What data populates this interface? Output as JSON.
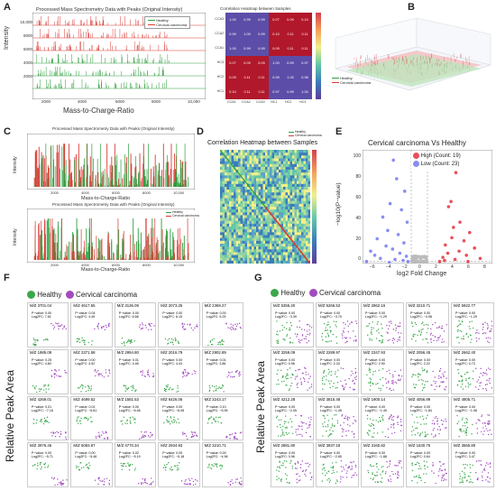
{
  "panels": {
    "A": {
      "label": "A",
      "title": "Processed Mass Spectrometry Data with Peaks (Original Intensity)",
      "xlabel": "Mass-to-Charge-Ratio",
      "ylabel": "Intensity",
      "legend": [
        "Healthy",
        "Cervical carcinoma"
      ],
      "yticks": [
        "10,000",
        "8000",
        "6000",
        "4000",
        "2000"
      ],
      "xticks": [
        "2000",
        "4000",
        "6000",
        "8000",
        "10,000"
      ],
      "heatmap_title": "Correlation Heatmap between Samples",
      "heatmap_rows": [
        "CCA3",
        "CCA2",
        "CCA1",
        "HC3",
        "HC2",
        "HC1"
      ],
      "heatmap_cols": [
        "CCA1",
        "CCA2",
        "CCA3",
        "HC1",
        "HC2",
        "HC3"
      ],
      "heatmap_values": [
        [
          "1.00",
          "0.99",
          "0.99",
          "0.07",
          "0.09",
          "0.10"
        ],
        [
          "0.99",
          "1.00",
          "0.99",
          "0.10",
          "0.11",
          "0.11"
        ],
        [
          "1.00",
          "0.99",
          "0.99",
          "0.09",
          "0.11",
          "0.11"
        ],
        [
          "0.07",
          "0.09",
          "0.09",
          "1.00",
          "0.99",
          "0.97"
        ],
        [
          "0.09",
          "0.11",
          "0.11",
          "0.99",
          "1.00",
          "0.98"
        ],
        [
          "0.10",
          "0.11",
          "0.11",
          "0.97",
          "0.99",
          "1.00"
        ]
      ]
    },
    "B": {
      "label": "B",
      "legend": [
        "Healthy",
        "Cervical carcinoma"
      ]
    },
    "C": {
      "label": "C",
      "top_title": "Processed Mass Spectrometry Data with Peaks (Original Intensity)",
      "bottom_title": "Processed Mass Spectrometry Data with Peaks (Original Intensity)",
      "xlabel": "Mass-to-Charge-Ratio",
      "ylabel": "Intensity",
      "legend": [
        "Healthy",
        "Cervical carcinoma"
      ],
      "xticks": [
        "2000",
        "4000",
        "6000",
        "8000",
        "10,000"
      ]
    },
    "D": {
      "label": "D",
      "title": "Correlation Heatmap between Samples",
      "legend": [
        "Healthy",
        "Cervical carcinoma"
      ]
    },
    "E": {
      "label": "E",
      "title": "Cervical carcinoma Vs Healthy",
      "xlabel": "log2 Fold Change",
      "ylabel": "−log10(P−value)",
      "legend": [
        "High (Count: 19)",
        "Low (Count: 23)"
      ],
      "xticks": [
        "−6",
        "−4",
        "−2",
        "0",
        "2",
        "4",
        "6",
        "8"
      ],
      "yticks": [
        "100",
        "80",
        "60",
        "40",
        "20",
        "0"
      ],
      "colors": {
        "high": "#e8505b",
        "low": "#8a8ef0"
      }
    },
    "F": {
      "label": "F",
      "ylabel": "Relative Peak Area",
      "legend": [
        "Healthy",
        "Cervical carcinoma"
      ],
      "cells": [
        {
          "mz": "M/Z 3701.04",
          "p": "P−value: 0.00",
          "fc": "Log2FC: 7.61"
        },
        {
          "mz": "M/Z 4617.55",
          "p": "P−value: 0.04",
          "fc": "Log2FC: 4.49"
        },
        {
          "mz": "M/Z 3136.09",
          "p": "P−value: 0.00",
          "fc": "Log2FC: 6.68"
        },
        {
          "mz": "M/Z 2073.25",
          "p": "P−value: 0.00",
          "fc": "Log2FC: 6.15"
        },
        {
          "mz": "M/Z 2369.27",
          "p": "P−value: 0.00",
          "fc": "Log2FC: 5.25"
        },
        {
          "mz": "M/Z 1985.08",
          "p": "P−value: 0.25",
          "fc": "Log2FC: 4.80"
        },
        {
          "mz": "M/Z 2371.58",
          "p": "P−value: 0.00",
          "fc": "Log2FC: 4.52"
        },
        {
          "mz": "M/Z 2894.80",
          "p": "P−value: 0.01",
          "fc": "Log2FC: 4.48"
        },
        {
          "mz": "M/Z 2016.79",
          "p": "P−value: 0.00",
          "fc": "Log2FC: 4.43"
        },
        {
          "mz": "M/Z 2902.89",
          "p": "P−value: 0.01",
          "fc": "Log2FC: 3.86"
        },
        {
          "mz": "M/Z 4269.01",
          "p": "P−value: 0.01",
          "fc": "Log2FC: −7.18"
        },
        {
          "mz": "M/Z 4699.52",
          "p": "P−value: 0.01",
          "fc": "Log2FC: −6.81"
        },
        {
          "mz": "M/Z 1581.53",
          "p": "P−value: 0.00",
          "fc": "Log2FC: −6.46"
        },
        {
          "mz": "M/Z 6426.06",
          "p": "P−value: 0.00",
          "fc": "Log2FC: −6.08"
        },
        {
          "mz": "M/Z 3243.17",
          "p": "P−value: 0.10",
          "fc": "Log2FC: −5.95"
        },
        {
          "mz": "M/Z 3976.46",
          "p": "P−value: 0.00",
          "fc": "Log2FC: −5.71"
        },
        {
          "mz": "M/Z 5083.87",
          "p": "P−value: 0.00",
          "fc": "Log2FC: −5.46"
        },
        {
          "mz": "M/Z 4770.34",
          "p": "P−value: 0.02",
          "fc": "Log2FC: −5.19"
        },
        {
          "mz": "M/Z 2934.93",
          "p": "P−value: 0.00",
          "fc": "Log2FC: −5.18"
        },
        {
          "mz": "M/Z 3210.71",
          "p": "P−value: 0.00",
          "fc": "Log2FC: −4.98"
        }
      ]
    },
    "G": {
      "label": "G",
      "ylabel": "Relative Peak Area",
      "legend": [
        "Healthy",
        "Cervical carcinoma"
      ],
      "cells": [
        {
          "mz": "M/Z 5355.20",
          "p": "P−value: 0.00",
          "fc": "Log2FC: −3.39"
        },
        {
          "mz": "M/Z 5266.53",
          "p": "P−value: 0.00",
          "fc": "Log2FC: −3.70"
        },
        {
          "mz": "M/Z 2962.16",
          "p": "P−value: 0.00",
          "fc": "Log2FC: −1.29"
        },
        {
          "mz": "M/Z 3210.71",
          "p": "P−value: 0.00",
          "fc": "Log2FC: −4.98"
        },
        {
          "mz": "M/Z 5922.77",
          "p": "P−value: 0.00",
          "fc": "Log2FC: −1.29"
        },
        {
          "mz": "M/Z 3259.09",
          "p": "P−value: 0.00",
          "fc": "Log2FC: 0.96"
        },
        {
          "mz": "M/Z 2289.97",
          "p": "P−value: 0.00",
          "fc": "Log2FC: 2.34"
        },
        {
          "mz": "M/Z 2347.93",
          "p": "P−value: 0.00",
          "fc": "Log2FC: 2.90"
        },
        {
          "mz": "M/Z 2056.45",
          "p": "P−value: 0.00",
          "fc": "Log2FC: 2.22"
        },
        {
          "mz": "M/Z 2662.40",
          "p": "P−value: 0.00",
          "fc": "Log2FC: 0.73"
        },
        {
          "mz": "M/Z 4212.28",
          "p": "P−value: 0.00",
          "fc": "Log2FC: −2.05"
        },
        {
          "mz": "M/Z 3815.48",
          "p": "P−value: 0.00",
          "fc": "Log2FC: −1.45"
        },
        {
          "mz": "M/Z 1900.14",
          "p": "P−value: 0.00",
          "fc": "Log2FC: −1.45"
        },
        {
          "mz": "M/Z 4056.99",
          "p": "P−value: 0.00",
          "fc": "Log2FC: −1.84"
        },
        {
          "mz": "M/Z 4805.71",
          "p": "P−value: 0.00",
          "fc": "Log2FC: −1.08"
        },
        {
          "mz": "M/Z 2881.80",
          "p": "P−value: 0.00",
          "fc": "Log2FC: 0.96"
        },
        {
          "mz": "M/Z 3937.18",
          "p": "P−value: 0.00",
          "fc": "Log2FC: −2.65"
        },
        {
          "mz": "M/Z 3160.82",
          "p": "P−value: 0.00",
          "fc": "Log2FC: −1.88"
        },
        {
          "mz": "M/Z 1630.75",
          "p": "P−value: 0.00",
          "fc": "Log2FC: 0.64"
        },
        {
          "mz": "M/Z 3565.80",
          "p": "P−value: 0.00",
          "fc": "Log2FC: 3.47"
        }
      ]
    }
  },
  "colors": {
    "healthy": "#3aa84a",
    "carcinoma": "#a24bbf",
    "red": "#d93b34",
    "green": "#2e9e3e"
  },
  "chart_data": [
    {
      "type": "line",
      "panel": "A",
      "title": "Processed Mass Spectrometry Data with Peaks (Original Intensity)",
      "xlabel": "Mass-to-Charge-Ratio",
      "ylabel": "Intensity",
      "series": [
        {
          "name": "Healthy"
        },
        {
          "name": "Cervical carcinoma"
        }
      ],
      "xlim": [
        1000,
        10000
      ],
      "ylim": [
        0,
        11000
      ]
    },
    {
      "type": "heatmap",
      "panel": "A",
      "title": "Correlation Heatmap between Samples",
      "rows": [
        "CCA3",
        "CCA2",
        "CCA1",
        "HC3",
        "HC2",
        "HC1"
      ],
      "cols": [
        "CCA1",
        "CCA2",
        "CCA3",
        "HC1",
        "HC2",
        "HC3"
      ]
    },
    {
      "type": "scatter",
      "panel": "E",
      "title": "Cervical carcinoma Vs Healthy",
      "xlabel": "log2 Fold Change",
      "ylabel": "−log10(P−value)",
      "xlim": [
        -7,
        9
      ],
      "ylim": [
        0,
        110
      ],
      "series": [
        {
          "name": "High (Count: 19)",
          "points": [
            [
              4.5,
              88
            ],
            [
              3.9,
              60
            ],
            [
              3.6,
              55
            ],
            [
              5.0,
              40
            ],
            [
              4.2,
              35
            ],
            [
              6.2,
              30
            ],
            [
              4.0,
              25
            ],
            [
              5.5,
              22
            ],
            [
              3.2,
              18
            ],
            [
              6.8,
              15
            ],
            [
              4.9,
              12
            ],
            [
              3.5,
              10
            ],
            [
              5.8,
              8
            ],
            [
              2.9,
              6
            ],
            [
              7.5,
              5
            ],
            [
              4.4,
              4
            ],
            [
              3.1,
              3
            ],
            [
              6.0,
              2
            ],
            [
              2.5,
              2
            ]
          ]
        },
        {
          "name": "Low (Count: 23)",
          "points": [
            [
              -3.2,
              100
            ],
            [
              -2.8,
              82
            ],
            [
              -1.8,
              70
            ],
            [
              -3.6,
              58
            ],
            [
              -2.2,
              52
            ],
            [
              -4.5,
              45
            ],
            [
              -1.5,
              40
            ],
            [
              -3.9,
              32
            ],
            [
              -2.6,
              28
            ],
            [
              -5.2,
              24
            ],
            [
              -1.9,
              20
            ],
            [
              -4.1,
              17
            ],
            [
              -3.3,
              14
            ],
            [
              -6.0,
              12
            ],
            [
              -2.4,
              10
            ],
            [
              -5.5,
              8
            ],
            [
              -1.6,
              7
            ],
            [
              -4.8,
              5
            ],
            [
              -3.0,
              4
            ],
            [
              -2.0,
              3
            ],
            [
              -6.5,
              2
            ],
            [
              -1.4,
              2
            ],
            [
              -3.7,
              1
            ]
          ]
        }
      ]
    }
  ]
}
